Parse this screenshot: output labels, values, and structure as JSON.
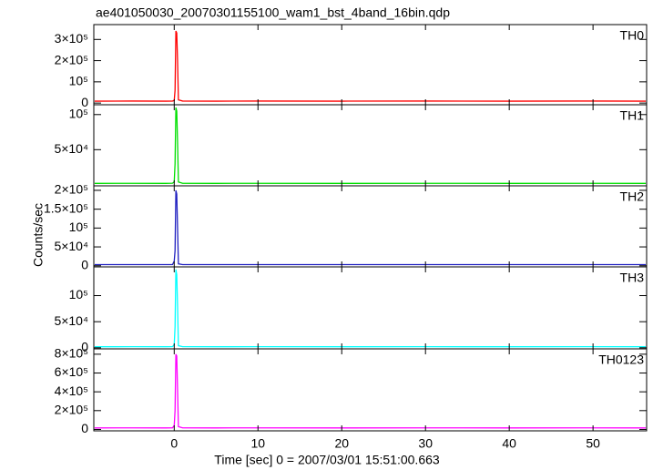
{
  "chart_data": [
    {
      "type": "line",
      "title": "ae401050030_20070301155100_wam1_bst_4band_16bin.qdp",
      "x": [
        -9.5,
        -5,
        -1,
        -0.2,
        0,
        0.1,
        0.2,
        0.3,
        0.4,
        0.5,
        1,
        5,
        10,
        20,
        30,
        40,
        50,
        56.3
      ],
      "series": [
        {
          "name": "TH0",
          "color": "#ff0000",
          "values": [
            9000,
            9500,
            9000,
            9500,
            12000,
            60000,
            340000,
            330000,
            200000,
            15000,
            9500,
            9000,
            9500,
            9000,
            9500,
            9000,
            9500,
            9000
          ]
        }
      ],
      "xlim": [
        -9.6,
        56.4
      ],
      "xticks": [
        0,
        10,
        20,
        30,
        40,
        50
      ],
      "ylim": [
        -8000,
        370000
      ],
      "yticks": [
        0,
        {
          "value": 100000,
          "label": "10⁵"
        },
        {
          "value": 200000,
          "label": "2×10⁵"
        },
        {
          "value": 300000,
          "label": "3×10⁵"
        }
      ]
    },
    {
      "type": "line",
      "x": [
        -9.5,
        -5,
        -1,
        -0.2,
        0,
        0.1,
        0.2,
        0.3,
        0.4,
        0.5,
        1,
        5,
        10,
        20,
        30,
        40,
        50,
        56.3
      ],
      "series": [
        {
          "name": "TH1",
          "color": "#00e000",
          "values": [
            2000,
            2100,
            2000,
            2200,
            4000,
            30000,
            110000,
            105000,
            60000,
            4000,
            2100,
            2000,
            2100,
            2000,
            2100,
            2000,
            2100,
            2000
          ]
        }
      ],
      "xlim": [
        -9.6,
        56.4
      ],
      "xticks": [
        0,
        10,
        20,
        30,
        40,
        50
      ],
      "ylim": [
        -1500,
        114000
      ],
      "yticks": [
        {
          "value": 50000,
          "label": "5×10⁴"
        },
        {
          "value": 100000,
          "label": "10⁵"
        }
      ]
    },
    {
      "type": "line",
      "ylabel": "Counts/sec",
      "x": [
        -9.5,
        -5,
        -1,
        -0.2,
        0,
        0.1,
        0.2,
        0.3,
        0.4,
        0.5,
        1,
        5,
        10,
        20,
        30,
        40,
        50,
        56.3
      ],
      "series": [
        {
          "name": "TH2",
          "color": "#2020c0",
          "values": [
            3000,
            3100,
            3000,
            3200,
            12000,
            40000,
            200000,
            190000,
            100000,
            5000,
            3100,
            3000,
            3100,
            3000,
            3100,
            3000,
            3100,
            3000
          ]
        }
      ],
      "xlim": [
        -9.6,
        56.4
      ],
      "xticks": [
        0,
        10,
        20,
        30,
        40,
        50
      ],
      "ylim": [
        -3000,
        212000
      ],
      "yticks": [
        0,
        {
          "value": 50000,
          "label": "5×10⁴"
        },
        {
          "value": 100000,
          "label": "10⁵"
        },
        {
          "value": 150000,
          "label": "1.5×10⁵"
        },
        {
          "value": 200000,
          "label": "2×10⁵"
        }
      ]
    },
    {
      "type": "line",
      "x": [
        -9.5,
        -5,
        -1,
        -0.2,
        0,
        0.1,
        0.2,
        0.3,
        0.4,
        0.5,
        1,
        5,
        10,
        20,
        30,
        40,
        50,
        56.3
      ],
      "series": [
        {
          "name": "TH3",
          "color": "#00ffff",
          "values": [
            2000,
            2100,
            2000,
            2200,
            6000,
            40000,
            150000,
            140000,
            80000,
            4000,
            2100,
            2000,
            2100,
            2000,
            2100,
            2000,
            2100,
            2000
          ]
        }
      ],
      "xlim": [
        -9.6,
        56.4
      ],
      "xticks": [
        0,
        10,
        20,
        30,
        40,
        50
      ],
      "ylim": [
        -2000,
        155000
      ],
      "yticks": [
        0,
        {
          "value": 50000,
          "label": "5×10⁴"
        },
        {
          "value": 100000,
          "label": "10⁵"
        }
      ]
    },
    {
      "type": "line",
      "xlabel": "Time [sec] 0 = 2007/03/01 15:51:00.663",
      "x": [
        -9.5,
        -5,
        -1,
        -0.2,
        0,
        0.1,
        0.2,
        0.3,
        0.4,
        0.5,
        1,
        5,
        10,
        20,
        30,
        40,
        50,
        56.3
      ],
      "series": [
        {
          "name": "TH0123",
          "color": "#ff00ff",
          "values": [
            16000,
            16500,
            16000,
            17000,
            40000,
            200000,
            800000,
            780000,
            420000,
            30000,
            16500,
            16000,
            16500,
            16000,
            16500,
            16000,
            16500,
            16000
          ]
        }
      ],
      "xlim": [
        -9.6,
        56.4
      ],
      "xticks": [
        0,
        10,
        20,
        30,
        40,
        50
      ],
      "ylim": [
        -15000,
        857000
      ],
      "yticks": [
        0,
        {
          "value": 200000,
          "label": "2×10⁵"
        },
        {
          "value": 400000,
          "label": "4×10⁵"
        },
        {
          "value": 600000,
          "label": "6×10⁵"
        },
        {
          "value": 800000,
          "label": "8×10⁵"
        }
      ]
    }
  ]
}
